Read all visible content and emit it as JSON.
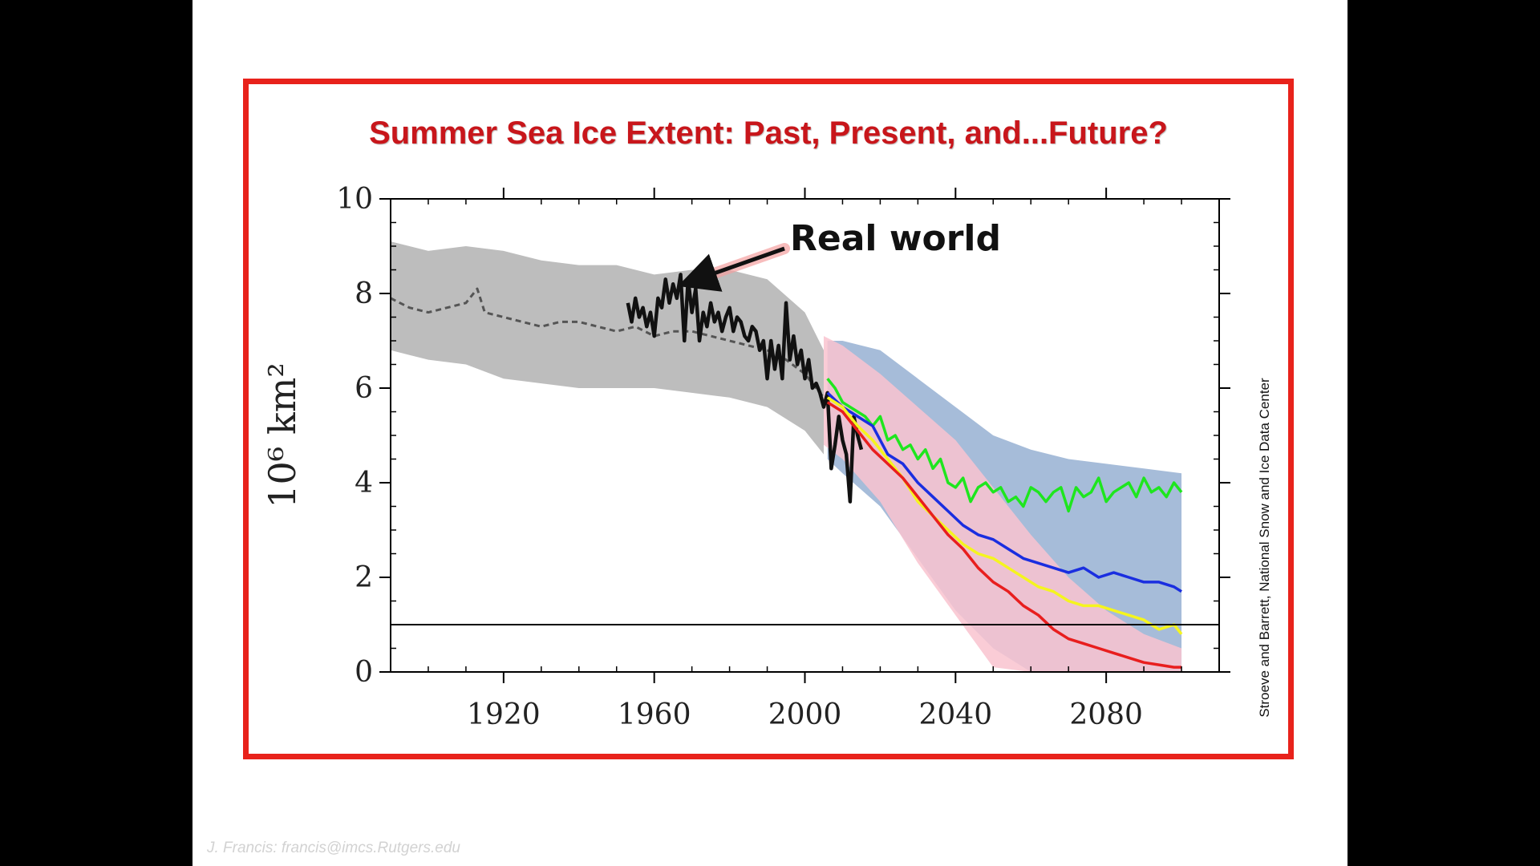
{
  "slide": {
    "footer_credit": "J. Francis: francis@imcs.Rutgers.edu"
  },
  "chart_data": {
    "type": "line",
    "title": "Summer Sea Ice Extent: Past, Present, and...Future?",
    "xlabel": "",
    "ylabel": "10⁶ km²",
    "xlim": [
      1890,
      2110
    ],
    "ylim": [
      0,
      10
    ],
    "x_ticks": [
      1920,
      1960,
      2000,
      2040,
      2080
    ],
    "y_ticks": [
      0,
      2,
      4,
      6,
      8,
      10
    ],
    "grid": false,
    "credit": "Stroeve and Barrett, National Snow and Ice Data Center",
    "annotation": {
      "text": "Real world",
      "x": 1969,
      "y": 8.2
    },
    "reference_line": {
      "y": 1.0
    },
    "colors": {
      "historical_band": "#bdbdbd",
      "pink_band": "#f9c3cf",
      "blue_band": "#a6bcd9",
      "observed": "#111111",
      "green": "#1ee61e",
      "blue": "#1a2ee0",
      "yellow": "#f5f51e",
      "red": "#e81e1e",
      "frame": "#e8221b",
      "title": "#c8161b"
    },
    "bands": [
      {
        "fill": "historical_band",
        "x": [
          1890,
          1900,
          1910,
          1920,
          1930,
          1940,
          1950,
          1960,
          1970,
          1980,
          1990,
          2000,
          2005
        ],
        "upper": [
          9.1,
          8.9,
          9.0,
          8.9,
          8.7,
          8.6,
          8.6,
          8.4,
          8.5,
          8.5,
          8.3,
          7.6,
          6.8
        ],
        "lower": [
          6.8,
          6.6,
          6.5,
          6.2,
          6.1,
          6.0,
          6.0,
          6.0,
          5.9,
          5.8,
          5.6,
          5.1,
          4.6
        ]
      },
      {
        "fill": "blue_band",
        "x": [
          2006,
          2010,
          2020,
          2030,
          2040,
          2050,
          2060,
          2070,
          2080,
          2090,
          2100
        ],
        "upper": [
          7.0,
          7.0,
          6.8,
          6.2,
          5.6,
          5.0,
          4.7,
          4.5,
          4.4,
          4.3,
          4.2
        ],
        "lower": [
          4.5,
          4.2,
          3.5,
          2.4,
          1.3,
          0.5,
          0.0,
          0.0,
          0.0,
          0.0,
          0.0
        ]
      },
      {
        "fill": "pink_band",
        "x": [
          2005,
          2010,
          2020,
          2030,
          2040,
          2050,
          2060,
          2070,
          2080,
          2090,
          2100
        ],
        "upper": [
          7.1,
          6.9,
          6.3,
          5.6,
          4.9,
          3.9,
          2.9,
          2.0,
          1.3,
          0.8,
          0.5
        ],
        "lower": [
          4.8,
          4.5,
          3.6,
          2.3,
          1.2,
          0.1,
          0.0,
          0.0,
          0.0,
          0.0,
          0.0
        ]
      }
    ],
    "series": [
      {
        "color": "historical_band",
        "style": "dashed-dark",
        "x": [
          1890,
          1895,
          1900,
          1905,
          1910,
          1913,
          1915,
          1920,
          1925,
          1930,
          1935,
          1940,
          1945,
          1950,
          1955,
          1960,
          1965,
          1970,
          1975,
          1980,
          1985,
          1990,
          1995,
          2000,
          2005
        ],
        "y": [
          7.9,
          7.7,
          7.6,
          7.7,
          7.8,
          8.1,
          7.6,
          7.5,
          7.4,
          7.3,
          7.4,
          7.4,
          7.3,
          7.2,
          7.3,
          7.1,
          7.2,
          7.2,
          7.1,
          7.0,
          6.9,
          6.8,
          6.6,
          6.3,
          5.8
        ]
      },
      {
        "color": "observed",
        "x": [
          1953,
          1954,
          1955,
          1956,
          1957,
          1958,
          1959,
          1960,
          1961,
          1962,
          1963,
          1964,
          1965,
          1966,
          1967,
          1968,
          1969,
          1970,
          1971,
          1972,
          1973,
          1974,
          1975,
          1976,
          1977,
          1978,
          1979,
          1980,
          1981,
          1982,
          1983,
          1984,
          1985,
          1986,
          1987,
          1988,
          1989,
          1990,
          1991,
          1992,
          1993,
          1994,
          1995,
          1996,
          1997,
          1998,
          1999,
          2000,
          2001,
          2002,
          2003,
          2004,
          2005,
          2006,
          2007,
          2008,
          2009,
          2010,
          2011,
          2012,
          2013,
          2014,
          2015
        ],
        "y": [
          7.8,
          7.4,
          7.9,
          7.5,
          7.7,
          7.3,
          7.6,
          7.1,
          7.9,
          7.7,
          8.3,
          7.8,
          8.2,
          7.9,
          8.4,
          7.0,
          8.3,
          7.6,
          8.1,
          7.0,
          7.6,
          7.3,
          7.8,
          7.4,
          7.6,
          7.2,
          7.5,
          7.7,
          7.2,
          7.5,
          7.4,
          7.1,
          7.0,
          7.3,
          7.2,
          6.8,
          7.0,
          6.2,
          7.0,
          6.4,
          6.9,
          6.2,
          7.8,
          6.6,
          7.1,
          6.5,
          6.8,
          6.2,
          6.6,
          6.0,
          6.1,
          5.9,
          5.6,
          5.9,
          4.3,
          4.8,
          5.4,
          4.9,
          4.6,
          3.6,
          5.4,
          5.0,
          4.7
        ]
      },
      {
        "color": "green",
        "x": [
          2006,
          2008,
          2010,
          2012,
          2014,
          2016,
          2018,
          2020,
          2022,
          2024,
          2026,
          2028,
          2030,
          2032,
          2034,
          2036,
          2038,
          2040,
          2042,
          2044,
          2046,
          2048,
          2050,
          2052,
          2054,
          2056,
          2058,
          2060,
          2062,
          2064,
          2066,
          2068,
          2070,
          2072,
          2074,
          2076,
          2078,
          2080,
          2082,
          2084,
          2086,
          2088,
          2090,
          2092,
          2094,
          2096,
          2098,
          2100
        ],
        "y": [
          6.2,
          6.0,
          5.7,
          5.6,
          5.5,
          5.4,
          5.2,
          5.4,
          4.9,
          5.0,
          4.7,
          4.8,
          4.5,
          4.7,
          4.3,
          4.5,
          4.0,
          3.9,
          4.1,
          3.6,
          3.9,
          4.0,
          3.8,
          3.9,
          3.6,
          3.7,
          3.5,
          3.9,
          3.8,
          3.6,
          3.8,
          3.9,
          3.4,
          3.9,
          3.7,
          3.8,
          4.1,
          3.6,
          3.8,
          3.9,
          4.0,
          3.7,
          4.1,
          3.8,
          3.9,
          3.7,
          4.0,
          3.8
        ]
      },
      {
        "color": "blue",
        "x": [
          2006,
          2010,
          2014,
          2018,
          2022,
          2026,
          2030,
          2034,
          2038,
          2042,
          2046,
          2050,
          2054,
          2058,
          2062,
          2066,
          2070,
          2074,
          2078,
          2082,
          2086,
          2090,
          2094,
          2098,
          2100
        ],
        "y": [
          5.9,
          5.6,
          5.4,
          5.2,
          4.6,
          4.4,
          4.0,
          3.7,
          3.4,
          3.1,
          2.9,
          2.8,
          2.6,
          2.4,
          2.3,
          2.2,
          2.1,
          2.2,
          2.0,
          2.1,
          2.0,
          1.9,
          1.9,
          1.8,
          1.7
        ]
      },
      {
        "color": "yellow",
        "x": [
          2006,
          2010,
          2014,
          2018,
          2022,
          2026,
          2030,
          2034,
          2038,
          2042,
          2046,
          2050,
          2054,
          2058,
          2062,
          2066,
          2070,
          2074,
          2078,
          2082,
          2086,
          2090,
          2094,
          2098,
          2100
        ],
        "y": [
          5.8,
          5.6,
          5.2,
          4.9,
          4.5,
          4.1,
          3.6,
          3.3,
          3.0,
          2.7,
          2.5,
          2.4,
          2.2,
          2.0,
          1.8,
          1.7,
          1.5,
          1.4,
          1.4,
          1.3,
          1.2,
          1.1,
          0.9,
          1.0,
          0.8
        ]
      },
      {
        "color": "red",
        "x": [
          2006,
          2010,
          2014,
          2018,
          2022,
          2026,
          2030,
          2034,
          2038,
          2042,
          2046,
          2050,
          2054,
          2058,
          2062,
          2066,
          2070,
          2074,
          2078,
          2082,
          2086,
          2090,
          2094,
          2098,
          2100
        ],
        "y": [
          5.7,
          5.5,
          5.1,
          4.7,
          4.4,
          4.1,
          3.7,
          3.3,
          2.9,
          2.6,
          2.2,
          1.9,
          1.7,
          1.4,
          1.2,
          0.9,
          0.7,
          0.6,
          0.5,
          0.4,
          0.3,
          0.2,
          0.15,
          0.1,
          0.1
        ]
      }
    ]
  }
}
